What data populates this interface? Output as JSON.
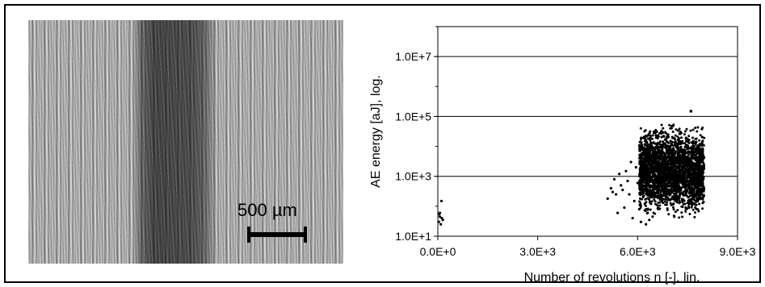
{
  "micrograph": {
    "scale_bar_label": "500 µm"
  },
  "chart_data": {
    "type": "scatter",
    "xlabel": "Number of revolutions n [-], lin.",
    "ylabel": "AE energy [aJ], log.",
    "x_scale": "linear",
    "y_scale": "log",
    "xlim": [
      0,
      9000
    ],
    "ylim": [
      10,
      100000000.0
    ],
    "x_ticks": [
      0,
      3000,
      6000,
      9000
    ],
    "x_tick_labels": [
      "0.0E+0",
      "3.0E+3",
      "6.0E+3",
      "9.0E+3"
    ],
    "y_ticks": [
      10,
      1000,
      100000,
      10000000
    ],
    "y_tick_labels": [
      "1.0E+1",
      "1.0E+3",
      "1.0E+5",
      "1.0E+7"
    ],
    "grid": "horizontal",
    "marker_color": "#000000",
    "series": [
      {
        "points": [
          [
            30,
            30
          ],
          [
            60,
            45
          ],
          [
            90,
            25
          ],
          [
            120,
            40
          ],
          [
            150,
            35
          ],
          [
            60,
            60
          ],
          [
            110,
            150
          ],
          [
            40,
            55
          ],
          [
            5100,
            180
          ],
          [
            5200,
            400
          ],
          [
            5250,
            300
          ],
          [
            5300,
            800
          ],
          [
            5350,
            250
          ],
          [
            5400,
            60
          ],
          [
            5450,
            1200
          ],
          [
            5500,
            500
          ],
          [
            5550,
            350
          ],
          [
            5600,
            90
          ],
          [
            5650,
            1500
          ],
          [
            5700,
            700
          ],
          [
            5750,
            250
          ],
          [
            5800,
            3000
          ],
          [
            5850,
            40
          ],
          [
            5900,
            150
          ],
          [
            5950,
            2000
          ],
          [
            6000,
            600
          ],
          [
            6050,
            80
          ],
          [
            6100,
            30
          ],
          [
            6150,
            400
          ],
          [
            6250,
            25
          ],
          [
            6300,
            60
          ],
          [
            6350,
            35
          ],
          [
            6400,
            120
          ],
          [
            6450,
            45
          ]
        ]
      }
    ],
    "dense_band": {
      "x_range": [
        6050,
        8000
      ],
      "y_range": [
        25,
        90000
      ],
      "peak": [
        7600,
        150000
      ]
    }
  }
}
